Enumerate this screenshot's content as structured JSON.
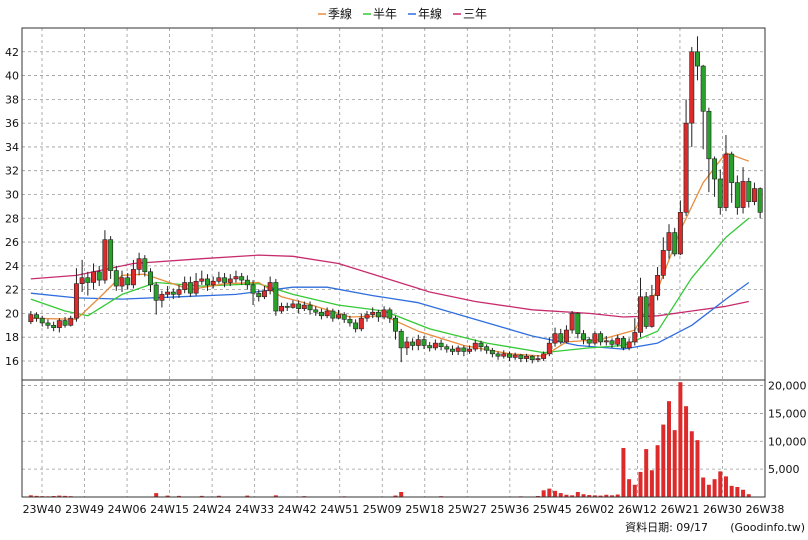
{
  "chart_data": {
    "type": "candlestick",
    "legend_position": "top-center",
    "grid": true,
    "colors": {
      "up": "#dd2a2a",
      "down": "#2aa02a",
      "volume": "#dd2a2a",
      "ma_quarter": "#e88c3c",
      "ma_half": "#35c935",
      "ma_year": "#2f6ede",
      "ma_3year": "#c82c6e",
      "grid": "#9a9a9a"
    },
    "legend": [
      {
        "name": "季線",
        "key": "ma_quarter"
      },
      {
        "name": "半年",
        "key": "ma_half"
      },
      {
        "name": "年線",
        "key": "ma_year"
      },
      {
        "name": "三年",
        "key": "ma_3year"
      }
    ],
    "price_axis": {
      "range": [
        14.4,
        44.0
      ],
      "ticks": [
        16,
        18,
        20,
        22,
        24,
        26,
        28,
        30,
        32,
        34,
        36,
        38,
        40,
        42
      ]
    },
    "volume_axis": {
      "range": [
        0,
        21000
      ],
      "ticks": [
        5000,
        10000,
        15000,
        20000
      ],
      "tick_labels": [
        "5,000",
        "10,000",
        "15,000",
        "20,000"
      ]
    },
    "x_ticks": [
      "23W40",
      "23W49",
      "24W06",
      "24W15",
      "24W24",
      "24W33",
      "24W42",
      "24W51",
      "25W09",
      "25W18",
      "25W27",
      "25W36",
      "25W45",
      "26W02",
      "26W12",
      "26W21",
      "26W30",
      "26W38"
    ],
    "candles": [
      [
        19.3,
        19.9,
        20.2,
        19.1
      ],
      [
        19.9,
        19.6,
        20.1,
        19.3
      ],
      [
        19.6,
        19.2,
        19.8,
        18.9
      ],
      [
        19.2,
        19.0,
        19.5,
        18.7
      ],
      [
        19.0,
        18.8,
        19.3,
        18.5
      ],
      [
        18.8,
        19.4,
        19.6,
        18.4
      ],
      [
        19.4,
        19.0,
        19.7,
        18.8
      ],
      [
        19.0,
        19.6,
        19.8,
        18.9
      ],
      [
        19.6,
        22.5,
        23.8,
        19.3
      ],
      [
        22.5,
        23.0,
        24.5,
        21.8
      ],
      [
        23.0,
        22.6,
        23.5,
        21.5
      ],
      [
        22.6,
        23.5,
        24.2,
        22.0
      ],
      [
        23.5,
        22.8,
        24.0,
        22.3
      ],
      [
        22.8,
        26.2,
        27.0,
        22.5
      ],
      [
        26.2,
        23.6,
        26.5,
        22.9
      ],
      [
        23.6,
        22.3,
        24.0,
        21.9
      ],
      [
        22.3,
        23.0,
        23.6,
        21.8
      ],
      [
        23.0,
        22.4,
        23.4,
        22.0
      ],
      [
        22.4,
        23.7,
        24.5,
        22.1
      ],
      [
        23.7,
        24.6,
        25.1,
        23.2
      ],
      [
        24.6,
        23.5,
        24.9,
        23.1
      ],
      [
        23.5,
        22.4,
        23.8,
        21.8
      ],
      [
        22.4,
        21.1,
        22.6,
        19.9
      ],
      [
        21.1,
        21.6,
        21.9,
        20.5
      ],
      [
        21.6,
        21.8,
        22.3,
        21.3
      ],
      [
        21.8,
        21.6,
        22.1,
        21.2
      ],
      [
        21.6,
        22.0,
        22.4,
        21.3
      ],
      [
        22.0,
        22.6,
        23.1,
        21.7
      ],
      [
        22.6,
        21.7,
        23.1,
        21.4
      ],
      [
        21.7,
        22.7,
        23.4,
        21.5
      ],
      [
        22.7,
        22.9,
        23.6,
        22.4
      ],
      [
        22.9,
        22.4,
        23.3,
        21.9
      ],
      [
        22.4,
        22.7,
        23.1,
        22.1
      ],
      [
        22.7,
        23.0,
        23.5,
        22.5
      ],
      [
        23.0,
        22.6,
        23.4,
        22.2
      ],
      [
        22.6,
        22.9,
        23.3,
        22.3
      ],
      [
        22.9,
        23.1,
        23.6,
        22.6
      ],
      [
        23.1,
        22.8,
        23.4,
        22.4
      ],
      [
        22.8,
        22.4,
        23.2,
        22.0
      ],
      [
        22.4,
        21.7,
        22.8,
        20.7
      ],
      [
        21.7,
        21.4,
        22.0,
        21.0
      ],
      [
        21.4,
        21.9,
        22.3,
        21.2
      ],
      [
        21.9,
        22.6,
        23.1,
        21.6
      ],
      [
        22.6,
        20.2,
        22.9,
        19.8
      ],
      [
        20.2,
        20.6,
        20.9,
        20.0
      ],
      [
        20.6,
        20.5,
        20.9,
        20.2
      ],
      [
        20.5,
        20.8,
        21.1,
        20.4
      ],
      [
        20.8,
        20.4,
        21.1,
        20.0
      ],
      [
        20.4,
        20.7,
        21.0,
        20.2
      ],
      [
        20.7,
        20.3,
        21.0,
        19.9
      ],
      [
        20.3,
        20.1,
        20.6,
        19.8
      ],
      [
        20.1,
        19.8,
        20.4,
        19.5
      ],
      [
        19.8,
        20.2,
        20.5,
        19.6
      ],
      [
        20.2,
        19.6,
        20.4,
        19.3
      ],
      [
        19.6,
        19.9,
        20.3,
        19.5
      ],
      [
        19.9,
        19.5,
        20.1,
        19.2
      ],
      [
        19.5,
        19.2,
        19.8,
        18.9
      ],
      [
        19.2,
        18.7,
        19.5,
        18.4
      ],
      [
        18.7,
        19.6,
        20.0,
        18.5
      ],
      [
        19.6,
        19.9,
        20.2,
        19.3
      ],
      [
        19.9,
        20.1,
        20.5,
        19.6
      ],
      [
        20.1,
        19.7,
        20.3,
        19.3
      ],
      [
        19.7,
        20.3,
        20.6,
        19.5
      ],
      [
        20.3,
        19.6,
        20.5,
        19.2
      ],
      [
        19.6,
        18.5,
        19.8,
        17.8
      ],
      [
        18.5,
        17.1,
        18.7,
        15.9
      ],
      [
        17.1,
        17.6,
        18.0,
        16.5
      ],
      [
        17.6,
        17.3,
        17.9,
        16.9
      ],
      [
        17.3,
        17.8,
        18.2,
        16.9
      ],
      [
        17.8,
        17.3,
        18.1,
        17.0
      ],
      [
        17.3,
        17.1,
        17.6,
        16.8
      ],
      [
        17.1,
        17.5,
        17.8,
        16.9
      ],
      [
        17.5,
        17.2,
        17.8,
        16.9
      ],
      [
        17.2,
        17.0,
        17.4,
        16.7
      ],
      [
        17.0,
        16.8,
        17.3,
        16.5
      ],
      [
        16.8,
        17.1,
        17.3,
        16.5
      ],
      [
        17.1,
        16.8,
        17.3,
        16.4
      ],
      [
        16.8,
        17.0,
        17.3,
        16.6
      ],
      [
        17.0,
        17.5,
        17.8,
        16.8
      ],
      [
        17.5,
        17.2,
        17.7,
        16.8
      ],
      [
        17.2,
        16.9,
        17.4,
        16.6
      ],
      [
        16.9,
        16.6,
        17.1,
        16.3
      ],
      [
        16.6,
        16.4,
        16.8,
        16.1
      ],
      [
        16.4,
        16.6,
        16.9,
        16.2
      ],
      [
        16.6,
        16.3,
        16.8,
        16.0
      ],
      [
        16.3,
        16.5,
        16.7,
        16.1
      ],
      [
        16.5,
        16.2,
        16.6,
        15.9
      ],
      [
        16.2,
        16.4,
        16.6,
        15.9
      ],
      [
        16.4,
        16.1,
        16.5,
        15.8
      ],
      [
        16.1,
        16.2,
        16.5,
        15.9
      ],
      [
        16.2,
        16.6,
        16.8,
        16.0
      ],
      [
        16.6,
        17.5,
        18.0,
        16.4
      ],
      [
        17.5,
        18.3,
        18.8,
        17.2
      ],
      [
        18.3,
        17.6,
        18.7,
        17.4
      ],
      [
        17.6,
        18.6,
        19.0,
        17.5
      ],
      [
        18.6,
        20.0,
        20.2,
        18.3
      ],
      [
        20.0,
        18.3,
        20.1,
        17.9
      ],
      [
        18.3,
        17.8,
        18.6,
        17.4
      ],
      [
        17.8,
        17.5,
        18.0,
        17.2
      ],
      [
        17.5,
        18.3,
        18.5,
        17.3
      ],
      [
        18.3,
        17.6,
        18.5,
        17.3
      ],
      [
        17.6,
        17.7,
        18.1,
        17.3
      ],
      [
        17.7,
        17.4,
        17.9,
        17.1
      ],
      [
        17.4,
        17.9,
        18.2,
        17.2
      ],
      [
        17.9,
        17.1,
        18.1,
        16.9
      ],
      [
        17.1,
        17.6,
        17.9,
        16.9
      ],
      [
        17.6,
        18.4,
        19.6,
        17.3
      ],
      [
        18.4,
        21.4,
        23.0,
        18.0
      ],
      [
        21.4,
        18.9,
        21.8,
        18.7
      ],
      [
        18.9,
        21.5,
        22.4,
        18.8
      ],
      [
        21.5,
        23.2,
        23.9,
        21.1
      ],
      [
        23.2,
        25.3,
        26.4,
        22.9
      ],
      [
        25.3,
        26.8,
        27.5,
        24.6
      ],
      [
        26.8,
        25.0,
        27.2,
        24.8
      ],
      [
        25.0,
        28.5,
        29.5,
        24.9
      ],
      [
        28.5,
        36.0,
        38.0,
        28.2
      ],
      [
        36.0,
        42.0,
        42.4,
        34.0
      ],
      [
        42.0,
        40.8,
        43.3,
        39.6
      ],
      [
        40.8,
        37.0,
        40.9,
        33.8
      ],
      [
        37.0,
        33.0,
        37.3,
        30.2
      ],
      [
        33.0,
        31.3,
        33.2,
        29.8
      ],
      [
        31.3,
        28.9,
        32.1,
        28.3
      ],
      [
        28.9,
        33.4,
        35.0,
        28.6
      ],
      [
        33.4,
        31.0,
        33.6,
        29.3
      ],
      [
        31.0,
        28.9,
        31.6,
        28.3
      ],
      [
        28.9,
        31.1,
        32.3,
        28.4
      ],
      [
        31.1,
        29.4,
        31.4,
        28.9
      ],
      [
        29.4,
        30.5,
        31.0,
        29.1
      ],
      [
        30.5,
        28.5,
        30.6,
        28.0
      ]
    ],
    "volumes": [
      0,
      0,
      0,
      0,
      0,
      0,
      0,
      0,
      900,
      1000,
      850,
      0,
      700,
      1400,
      900,
      650,
      0,
      0,
      600,
      700,
      0,
      600,
      0,
      0,
      0,
      0,
      0,
      0,
      0,
      0,
      0,
      0,
      0,
      0,
      0,
      0,
      0,
      0,
      0,
      0,
      0,
      0,
      0,
      0,
      0,
      0,
      0,
      0,
      0,
      0,
      0,
      0,
      0,
      0,
      0,
      0,
      0,
      0,
      0,
      0,
      0,
      0,
      0,
      0,
      0,
      0,
      0,
      0,
      0,
      0,
      0,
      0,
      0,
      0,
      0,
      0,
      0,
      0,
      0,
      0,
      0,
      0,
      0,
      0,
      0,
      0,
      0,
      0,
      0,
      0,
      0,
      0,
      0,
      0,
      0,
      0,
      0,
      0,
      0,
      0,
      0,
      0,
      0,
      0,
      0,
      0,
      0,
      0,
      0,
      0,
      0,
      0,
      0,
      0,
      0,
      0,
      0,
      0,
      0,
      0,
      0,
      0,
      0,
      0,
      0,
      0,
      0,
      0,
      0,
      0,
      0,
      0,
      0,
      0,
      0,
      0,
      0,
      0,
      0,
      0,
      0,
      0,
      0,
      0,
      0,
      0,
      0,
      0,
      0,
      0,
      0,
      0,
      0,
      0,
      0,
      0,
      0,
      0,
      0,
      0,
      0,
      0,
      0,
      0,
      0,
      0,
      0,
      0,
      0,
      0,
      0,
      0,
      0,
      0,
      0,
      0,
      0,
      0,
      0,
      0,
      0,
      0,
      0,
      0,
      0
    ],
    "volume_override": [
      [
        0,
        300
      ],
      [
        1,
        200
      ],
      [
        2,
        150
      ],
      [
        3,
        120
      ],
      [
        4,
        180
      ],
      [
        5,
        250
      ],
      [
        6,
        200
      ],
      [
        7,
        150
      ],
      [
        22,
        700
      ],
      [
        24,
        250
      ],
      [
        26,
        200
      ],
      [
        30,
        200
      ],
      [
        33,
        220
      ],
      [
        38,
        250
      ],
      [
        43,
        300
      ],
      [
        48,
        150
      ],
      [
        55,
        120
      ],
      [
        64,
        260
      ],
      [
        65,
        900
      ],
      [
        72,
        150
      ],
      [
        86,
        120
      ],
      [
        89,
        180
      ],
      [
        90,
        1200
      ],
      [
        91,
        1500
      ],
      [
        92,
        1100
      ],
      [
        93,
        700
      ],
      [
        94,
        400
      ],
      [
        95,
        300
      ],
      [
        96,
        900
      ],
      [
        97,
        500
      ],
      [
        98,
        350
      ],
      [
        99,
        300
      ],
      [
        100,
        250
      ],
      [
        101,
        400
      ],
      [
        102,
        300
      ],
      [
        103,
        450
      ],
      [
        104,
        8800
      ],
      [
        105,
        3200
      ],
      [
        106,
        2200
      ],
      [
        107,
        4500
      ],
      [
        108,
        8600
      ],
      [
        109,
        4800
      ],
      [
        110,
        9300
      ],
      [
        111,
        13000
      ],
      [
        112,
        17200
      ],
      [
        113,
        12000
      ],
      [
        114,
        20600
      ],
      [
        115,
        16300
      ],
      [
        116,
        11800
      ],
      [
        117,
        10200
      ],
      [
        118,
        3500
      ],
      [
        119,
        2200
      ],
      [
        120,
        3200
      ],
      [
        121,
        4600
      ],
      [
        122,
        3700
      ],
      [
        123,
        2000
      ],
      [
        124,
        1800
      ],
      [
        125,
        1300
      ],
      [
        126,
        500
      ]
    ],
    "ma_quarter": [
      [
        0,
        19.6
      ],
      [
        8,
        19.5
      ],
      [
        12,
        21.3
      ],
      [
        16,
        23.2
      ],
      [
        20,
        23.3
      ],
      [
        28,
        22.0
      ],
      [
        34,
        22.5
      ],
      [
        40,
        22.6
      ],
      [
        44,
        21.4
      ],
      [
        48,
        20.9
      ],
      [
        56,
        19.7
      ],
      [
        62,
        19.8
      ],
      [
        68,
        18.5
      ],
      [
        76,
        17.3
      ],
      [
        84,
        16.6
      ],
      [
        90,
        16.4
      ],
      [
        94,
        17.6
      ],
      [
        100,
        17.8
      ],
      [
        106,
        18.6
      ],
      [
        110,
        22.0
      ],
      [
        114,
        27.0
      ],
      [
        118,
        31.0
      ],
      [
        122,
        33.5
      ],
      [
        126,
        32.8
      ]
    ],
    "ma_half": [
      [
        0,
        21.2
      ],
      [
        6,
        20.2
      ],
      [
        10,
        19.8
      ],
      [
        16,
        21.6
      ],
      [
        22,
        22.6
      ],
      [
        30,
        22.3
      ],
      [
        40,
        22.5
      ],
      [
        46,
        21.6
      ],
      [
        54,
        20.7
      ],
      [
        62,
        20.2
      ],
      [
        70,
        18.7
      ],
      [
        80,
        17.5
      ],
      [
        90,
        16.7
      ],
      [
        98,
        17.1
      ],
      [
        104,
        17.3
      ],
      [
        110,
        18.5
      ],
      [
        116,
        23.0
      ],
      [
        122,
        26.4
      ],
      [
        126,
        28.0
      ]
    ],
    "ma_year": [
      [
        0,
        21.7
      ],
      [
        8,
        21.3
      ],
      [
        16,
        21.2
      ],
      [
        26,
        21.4
      ],
      [
        36,
        21.6
      ],
      [
        46,
        22.2
      ],
      [
        52,
        22.2
      ],
      [
        60,
        21.5
      ],
      [
        68,
        20.9
      ],
      [
        78,
        19.5
      ],
      [
        88,
        18.1
      ],
      [
        96,
        17.3
      ],
      [
        104,
        17.0
      ],
      [
        110,
        17.5
      ],
      [
        116,
        19.0
      ],
      [
        122,
        21.2
      ],
      [
        126,
        22.6
      ]
    ],
    "ma_3year": [
      [
        0,
        22.9
      ],
      [
        8,
        23.2
      ],
      [
        18,
        24.2
      ],
      [
        30,
        24.6
      ],
      [
        40,
        24.9
      ],
      [
        46,
        24.8
      ],
      [
        54,
        24.2
      ],
      [
        62,
        23.0
      ],
      [
        70,
        21.8
      ],
      [
        78,
        21.0
      ],
      [
        88,
        20.3
      ],
      [
        98,
        20.0
      ],
      [
        104,
        19.7
      ],
      [
        110,
        19.8
      ],
      [
        116,
        20.2
      ],
      [
        122,
        20.6
      ],
      [
        126,
        21.0
      ]
    ]
  },
  "footer": {
    "date_label": "資料日期: 09/17",
    "source_label": "(Goodinfo.tw)"
  }
}
